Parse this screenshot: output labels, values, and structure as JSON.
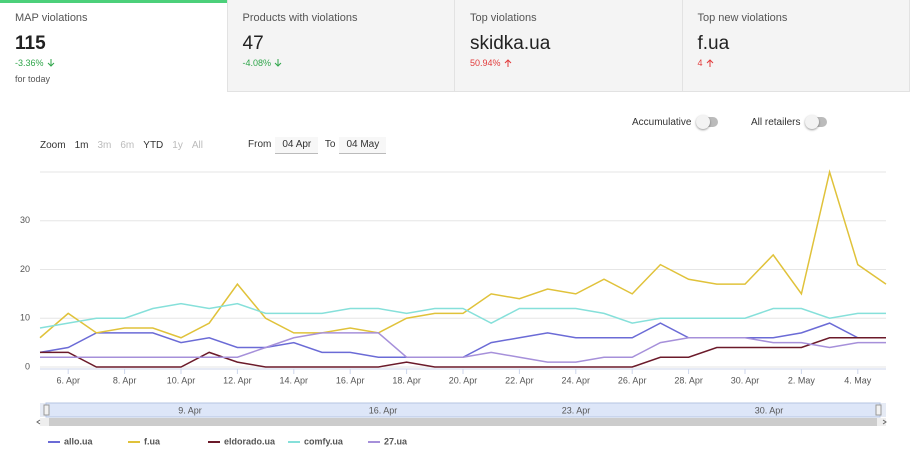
{
  "cards": [
    {
      "label": "MAP violations",
      "value": "115",
      "change": "-3.36%",
      "note": "for today"
    },
    {
      "label": "Products with violations",
      "value": "47",
      "change": "-4.08%"
    },
    {
      "label": "Top violations",
      "value": "skidka.ua",
      "change": "50.94%"
    },
    {
      "label": "Top new violations",
      "value": "f.ua",
      "change": "4"
    }
  ],
  "toggles": [
    "Accumulative",
    "All retailers"
  ],
  "zoom": {
    "label": "Zoom",
    "options": [
      "1m",
      "3m",
      "6m",
      "YTD",
      "1y",
      "All"
    ]
  },
  "range": {
    "from_label": "From",
    "from": "04 Apr",
    "to_label": "To",
    "to": "04 May"
  },
  "navigator_labels": [
    "9. Apr",
    "16. Apr",
    "23. Apr",
    "30. Apr"
  ],
  "chart_data": {
    "type": "line",
    "categories": [
      null,
      "6. Apr",
      null,
      "8. Apr",
      null,
      "10. Apr",
      null,
      "12. Apr",
      null,
      "14. Apr",
      null,
      "16. Apr",
      null,
      "18. Apr",
      null,
      "20. Apr",
      null,
      "22. Apr",
      null,
      "24. Apr",
      null,
      "26. Apr",
      null,
      "28. Apr",
      null,
      "30. Apr",
      null,
      "2. May",
      null,
      "4. May",
      null
    ],
    "ylim": [
      0,
      40
    ],
    "yticks": [
      0,
      10,
      20,
      30
    ],
    "grid": true,
    "legend": "bottom",
    "series": [
      {
        "name": "allo.ua",
        "color": "#6b6bd6",
        "values": [
          3,
          4,
          7,
          7,
          7,
          5,
          6,
          4,
          4,
          5,
          3,
          3,
          2,
          2,
          2,
          2,
          5,
          6,
          7,
          6,
          6,
          6,
          9,
          6,
          6,
          6,
          6,
          7,
          9,
          6,
          6
        ]
      },
      {
        "name": "f.ua",
        "color": "#e0c23a",
        "values": [
          6,
          11,
          7,
          8,
          8,
          6,
          9,
          17,
          10,
          7,
          7,
          8,
          7,
          10,
          11,
          11,
          15,
          14,
          16,
          15,
          18,
          15,
          21,
          18,
          17,
          17,
          23,
          15,
          40,
          21,
          17
        ]
      },
      {
        "name": "eldorado.ua",
        "color": "#6b1a2a",
        "values": [
          3,
          3,
          0,
          0,
          0,
          0,
          3,
          1,
          0,
          0,
          0,
          0,
          0,
          1,
          0,
          0,
          0,
          0,
          0,
          0,
          0,
          0,
          2,
          2,
          4,
          4,
          4,
          4,
          6,
          6,
          6
        ]
      },
      {
        "name": "comfy.ua",
        "color": "#86e0da",
        "values": [
          8,
          9,
          10,
          10,
          12,
          13,
          12,
          13,
          11,
          11,
          11,
          12,
          12,
          11,
          12,
          12,
          9,
          12,
          12,
          12,
          11,
          9,
          10,
          10,
          10,
          10,
          12,
          12,
          10,
          11,
          11
        ]
      },
      {
        "name": "27.ua",
        "color": "#a690da",
        "values": [
          2,
          2,
          2,
          2,
          2,
          2,
          2,
          2,
          4,
          6,
          7,
          7,
          7,
          2,
          2,
          2,
          3,
          2,
          1,
          1,
          2,
          2,
          5,
          6,
          6,
          6,
          5,
          5,
          4,
          5,
          5
        ]
      }
    ]
  }
}
